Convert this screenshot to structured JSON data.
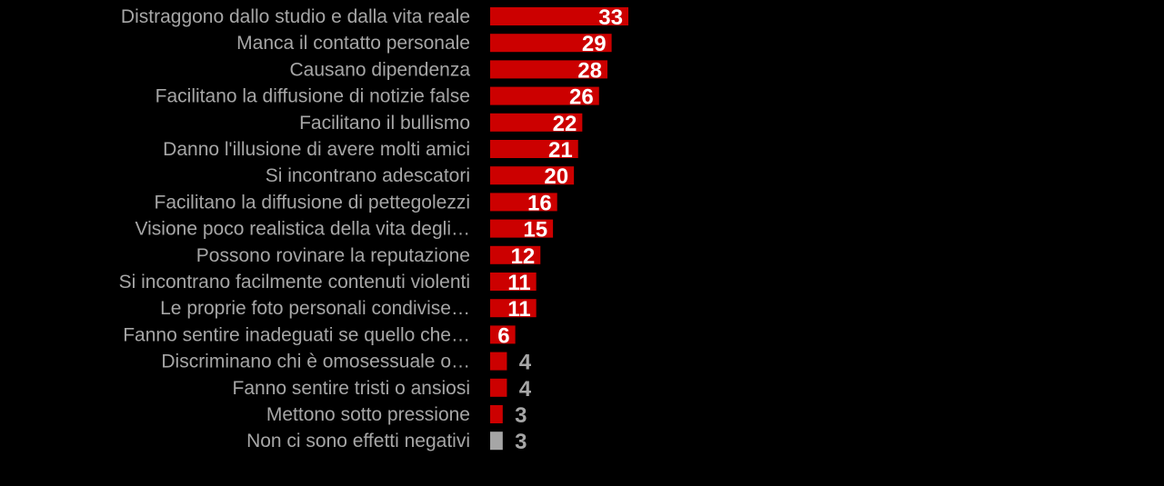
{
  "chart_data": {
    "type": "bar",
    "orientation": "horizontal",
    "title": "",
    "xlabel": "",
    "ylabel": "",
    "categories": [
      "Distraggono dallo studio e dalla vita reale",
      "Manca il contatto personale",
      "Causano dipendenza",
      "Facilitano la diffusione di notizie false",
      "Facilitano il bullismo",
      "Danno l'illusione di avere molti amici",
      "Si incontrano adescatori",
      "Facilitano la diffusione di pettegolezzi",
      "Visione poco realistica della vita degli…",
      "Possono rovinare la reputazione",
      "Si incontrano facilmente contenuti violenti",
      "Le proprie foto personali condivise…",
      "Fanno sentire inadeguati se quello che…",
      "Discriminano chi è omosessuale o…",
      "Fanno sentire tristi o ansiosi",
      "Mettono sotto pressione",
      "Non ci sono effetti negativi"
    ],
    "values": [
      33,
      29,
      28,
      26,
      22,
      21,
      20,
      16,
      15,
      12,
      11,
      11,
      6,
      4,
      4,
      3,
      3
    ],
    "bar_colors": [
      "#cc0000",
      "#cc0000",
      "#cc0000",
      "#cc0000",
      "#cc0000",
      "#cc0000",
      "#cc0000",
      "#cc0000",
      "#cc0000",
      "#cc0000",
      "#cc0000",
      "#cc0000",
      "#cc0000",
      "#cc0000",
      "#cc0000",
      "#cc0000",
      "#a6a6a6"
    ],
    "label_colors": [
      "#ffffff",
      "#ffffff",
      "#ffffff",
      "#ffffff",
      "#ffffff",
      "#ffffff",
      "#ffffff",
      "#ffffff",
      "#ffffff",
      "#ffffff",
      "#ffffff",
      "#ffffff",
      "#ffffff",
      "#a6a6a6",
      "#a6a6a6",
      "#a6a6a6",
      "#a6a6a6"
    ],
    "label_inside_threshold": 5,
    "xlim": [
      0,
      33
    ],
    "grid": false,
    "legend": "none"
  }
}
